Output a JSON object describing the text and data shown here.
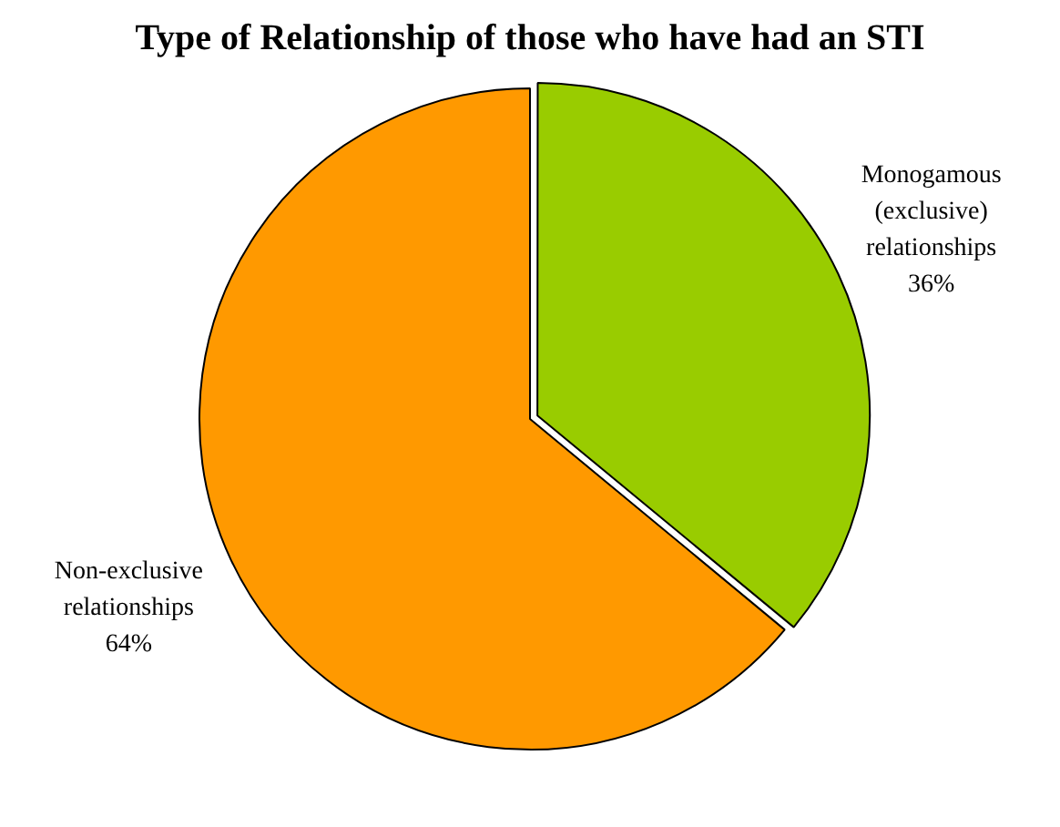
{
  "chart_data": {
    "type": "pie",
    "title": "Type of Relationship of those who have had an STI",
    "categories": [
      "Monogamous (exclusive) relationships",
      "Non-exclusive relationships"
    ],
    "values": [
      36,
      64
    ],
    "colors": [
      "#99cc00",
      "#ff9900"
    ],
    "value_labels": [
      "36%",
      "64%"
    ],
    "legend": false
  }
}
